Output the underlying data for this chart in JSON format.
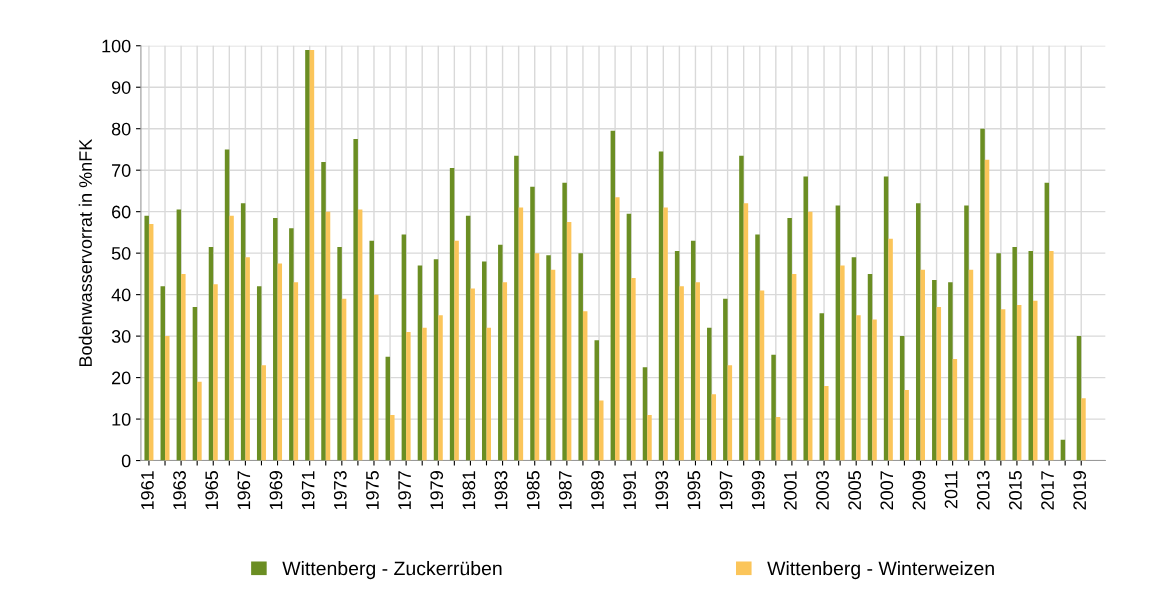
{
  "chart_data": {
    "type": "bar",
    "ylabel": "Bodenwasservorrat in %nFK",
    "categories": [
      "1961",
      null,
      "1963",
      null,
      "1965",
      null,
      "1967",
      null,
      "1969",
      null,
      "1971",
      null,
      "1973",
      null,
      "1975",
      null,
      "1977",
      null,
      "1979",
      null,
      "1981",
      null,
      "1983",
      null,
      "1985",
      null,
      "1987",
      null,
      "1989",
      null,
      "1991",
      null,
      "1993",
      null,
      "1995",
      null,
      "1997",
      null,
      "1999",
      null,
      "2001",
      null,
      "2003",
      null,
      "2005",
      null,
      "2007",
      null,
      "2009",
      null,
      "2011",
      null,
      "2013",
      null,
      "2015",
      null,
      "2017",
      null,
      "2019"
    ],
    "series": [
      {
        "name": "Wittenberg - Zuckerrüben",
        "color": "#6b8e23",
        "values": [
          59,
          42,
          60.5,
          37,
          51.5,
          75,
          62,
          42,
          58.5,
          56,
          99,
          72,
          51.5,
          77.5,
          53,
          25,
          54.5,
          47,
          48.5,
          70.5,
          59,
          48,
          52,
          73.5,
          66,
          49.5,
          67,
          50,
          29,
          79.5,
          59.5,
          22.5,
          74.5,
          50.5,
          53,
          32,
          39,
          73.5,
          54.5,
          25.5,
          58.5,
          68.5,
          35.5,
          61.5,
          49,
          45,
          68.5,
          30,
          62,
          43.5,
          43,
          61.5,
          80,
          50,
          51.5,
          50.5,
          67,
          5,
          30
        ]
      },
      {
        "name": "Wittenberg - Winterweizen",
        "color": "#fbc55a",
        "values": [
          57,
          30,
          45,
          19,
          42.5,
          59,
          49,
          23,
          47.5,
          43,
          99,
          60,
          39,
          60.5,
          40,
          11,
          31,
          32,
          35,
          53,
          41.5,
          32,
          43,
          61,
          50,
          46,
          57.5,
          36,
          14.5,
          63.5,
          44,
          11,
          61,
          42,
          43,
          16,
          23,
          62,
          41,
          10.5,
          45,
          60,
          18,
          47,
          35,
          34,
          53.5,
          17,
          46,
          37,
          24.5,
          46,
          72.5,
          36.5,
          37.5,
          38.5,
          50.5,
          null,
          15
        ]
      }
    ],
    "ylim": [
      0,
      100
    ],
    "yticks": [
      0,
      10,
      20,
      30,
      40,
      50,
      60,
      70,
      80,
      90,
      100
    ],
    "grid": true,
    "legend": "bottom"
  }
}
